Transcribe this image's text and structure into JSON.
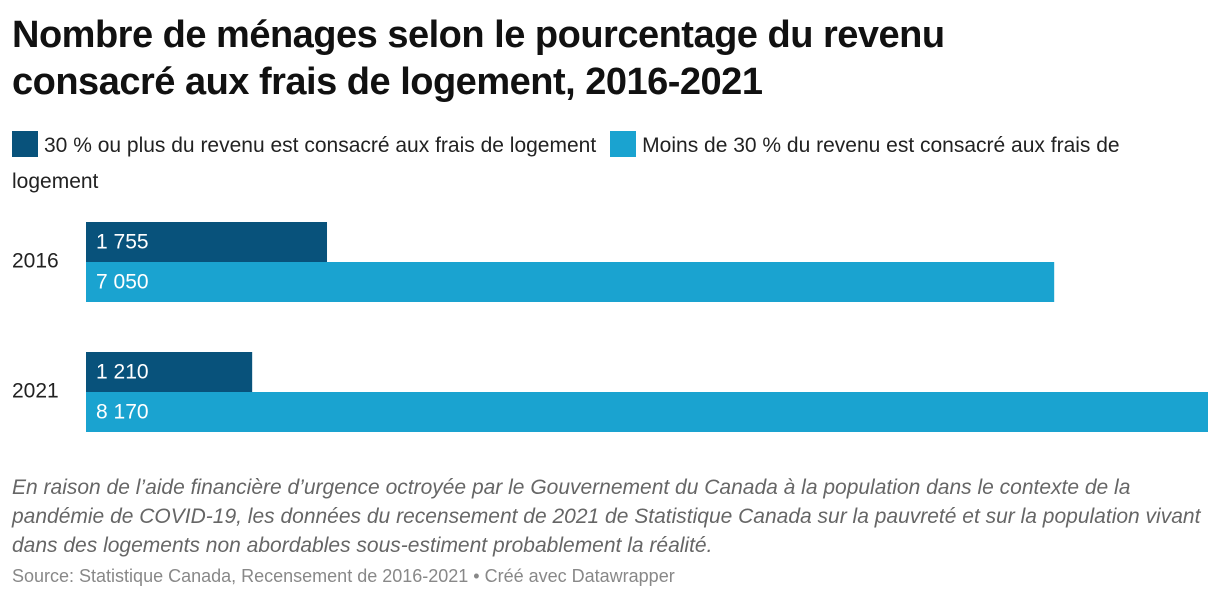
{
  "chart_data": {
    "type": "bar",
    "orientation": "horizontal",
    "title": "Nombre de ménages selon le pourcentage du revenu consacré aux frais de logement, 2016-2021",
    "categories": [
      "2016",
      "2021"
    ],
    "series": [
      {
        "name": "30 % ou plus du revenu est consacré aux frais de logement",
        "color": "#08527b",
        "values": [
          1755,
          1210
        ],
        "value_labels": [
          "1 755",
          "1 210"
        ]
      },
      {
        "name": "Moins de 30 % du revenu est consacré aux frais de logement",
        "color": "#1aa3d0",
        "values": [
          7050,
          8170
        ],
        "value_labels": [
          "7 050",
          "8 170"
        ]
      }
    ],
    "note": "En raison de l’aide financière d’urgence octroyée par le Gouvernement du Canada à la population dans le contexte de la pandémie de COVID-19, les données du recensement de 2021 de Statistique Canada sur la pauvreté et sur la population vivant dans des logements non abordables sous-estiment probablement la réalité.",
    "source": "Source: Statistique Canada, Recensement de 2016-2021 • Créé avec Datawrapper"
  }
}
